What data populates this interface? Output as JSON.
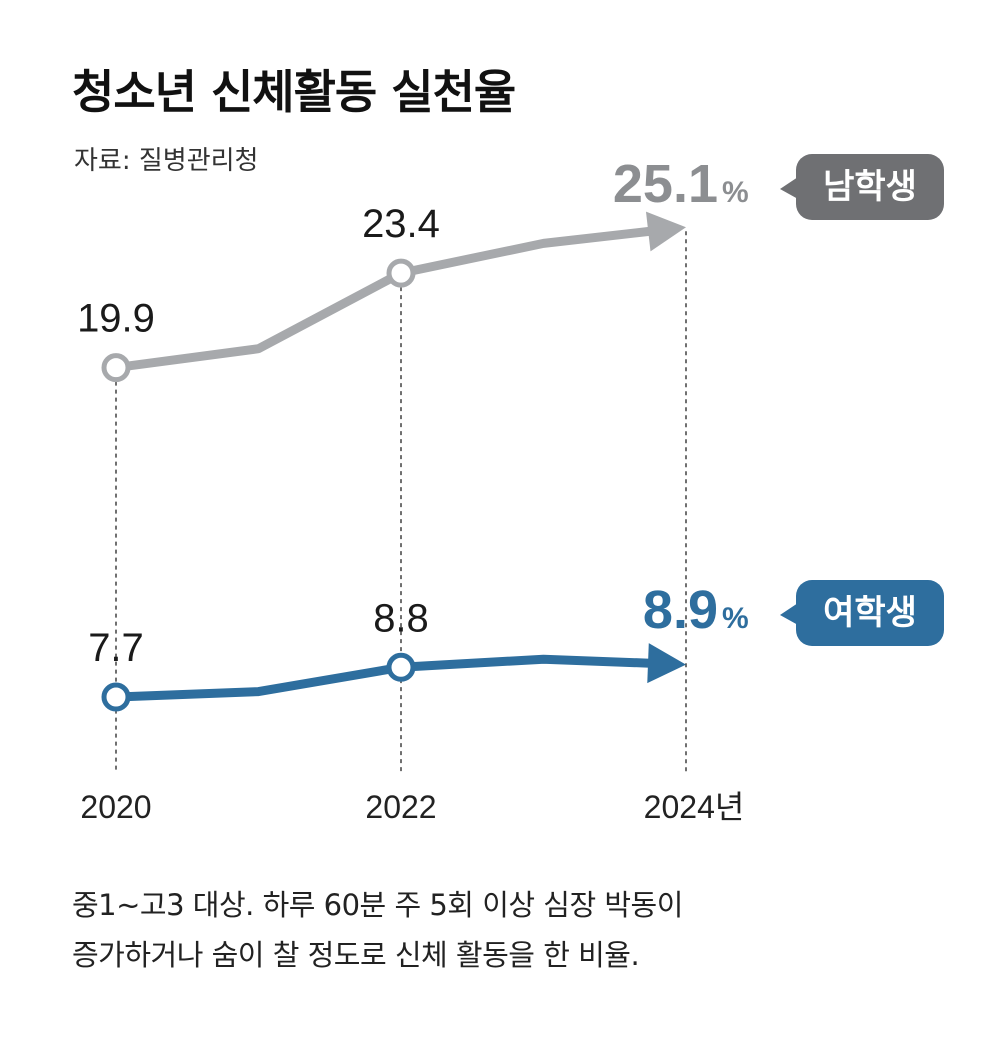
{
  "title": "청소년 신체활동 실천율",
  "source": "자료: 질병관리청",
  "chart_data": {
    "type": "line",
    "x": [
      2020,
      2021,
      2022,
      2023,
      2024
    ],
    "x_tick_labels": [
      "2020",
      "2022",
      "2024년"
    ],
    "x_tick_values": [
      2020,
      2022,
      2024
    ],
    "ylim": [
      7,
      27
    ],
    "series": [
      {
        "name": "남학생",
        "values": [
          19.9,
          20.6,
          23.4,
          24.5,
          25.1
        ],
        "labeled": [
          {
            "x": 2020,
            "text": "19.9"
          },
          {
            "x": 2022,
            "text": "23.4"
          }
        ],
        "final_value": "25.1",
        "unit": "%",
        "color": "#a7a9ac",
        "bubble_color": "#6f7073",
        "value_color": "#8c8e91"
      },
      {
        "name": "여학생",
        "values": [
          7.7,
          7.9,
          8.8,
          9.1,
          8.9
        ],
        "labeled": [
          {
            "x": 2020,
            "text": "7.7"
          },
          {
            "x": 2022,
            "text": "8.8"
          }
        ],
        "final_value": "8.9",
        "unit": "%",
        "color": "#2e6e9e",
        "bubble_color": "#2e6e9e",
        "value_color": "#2e6e9e"
      }
    ]
  },
  "footnote": {
    "line1": "중1∼고3 대상. 하루 60분 주 5회 이상 심장 박동이",
    "line2": "증가하거나 숨이 찰 정도로 신체 활동을 한 비율."
  }
}
